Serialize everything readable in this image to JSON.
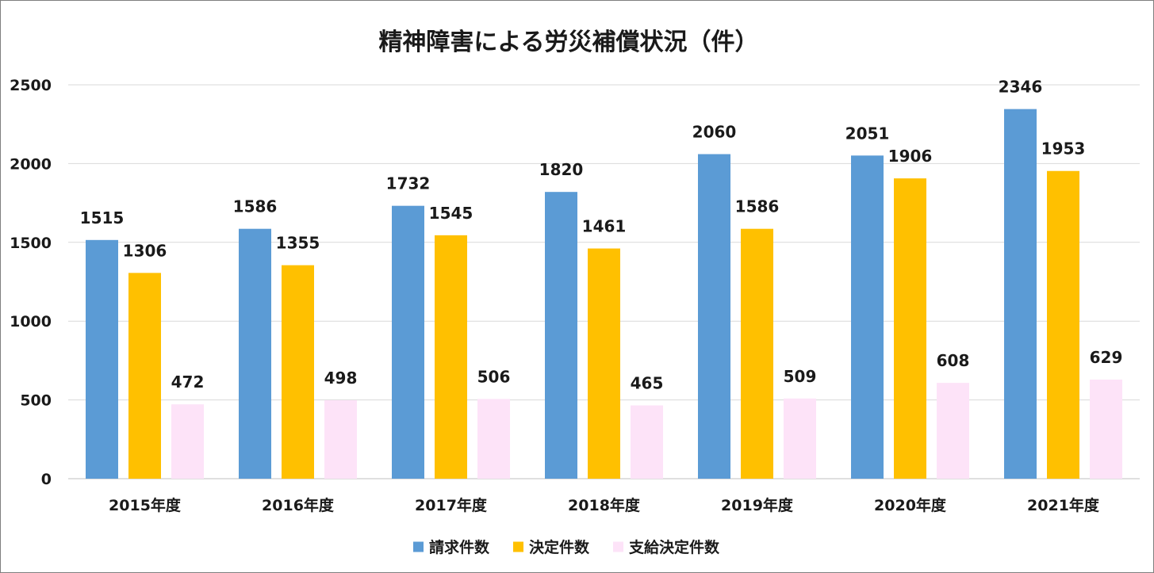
{
  "chart_data": {
    "type": "bar",
    "title": "精神障害による労災補償状況（件）",
    "categories": [
      "2015年度",
      "2016年度",
      "2017年度",
      "2018年度",
      "2019年度",
      "2020年度",
      "2021年度"
    ],
    "series": [
      {
        "name": "請求件数",
        "color": "#5b9bd5",
        "values": [
          1515,
          1586,
          1732,
          1820,
          2060,
          2051,
          2346
        ]
      },
      {
        "name": "決定件数",
        "color": "#ffc000",
        "values": [
          1306,
          1355,
          1545,
          1461,
          1586,
          1906,
          1953
        ]
      },
      {
        "name": "支給決定件数",
        "color": "#fde3f8",
        "values": [
          472,
          498,
          506,
          465,
          509,
          608,
          629
        ]
      }
    ],
    "ylim": [
      0,
      2500
    ],
    "yticks": [
      "0",
      "500",
      "1000",
      "1500",
      "2000",
      "2500"
    ],
    "grid": true,
    "legend_position": "bottom",
    "data_labels": true
  }
}
